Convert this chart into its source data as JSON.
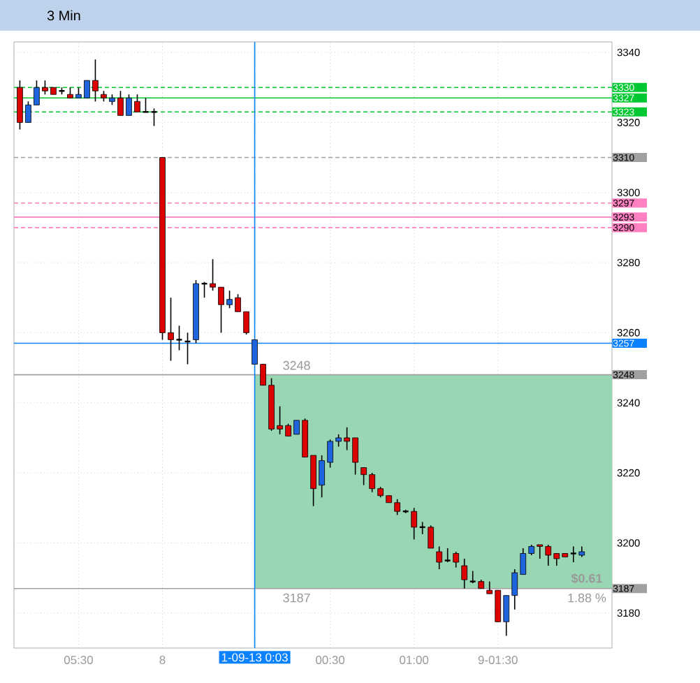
{
  "chart_data": {
    "type": "candlestick",
    "title": "3 Min",
    "categories": [
      null,
      null,
      null,
      null,
      null,
      null,
      null,
      "05:30",
      null,
      null,
      null,
      null,
      null,
      null,
      null,
      null,
      null,
      "8",
      null,
      null,
      null,
      null,
      null,
      null,
      null,
      null,
      null,
      null,
      "1-09-13 0:03",
      null,
      null,
      null,
      null,
      null,
      null,
      null,
      null,
      "00:30",
      null,
      null,
      null,
      null,
      null,
      null,
      null,
      null,
      null,
      "01:00",
      null,
      null,
      null,
      null,
      null,
      null,
      null,
      null,
      null,
      "9-01:30",
      null,
      null,
      null,
      null,
      null,
      null,
      null,
      null,
      null,
      null
    ],
    "ohlc": [
      [
        3330,
        3332,
        3318,
        3320
      ],
      [
        3320,
        3326,
        3320,
        3325
      ],
      [
        3325,
        3332,
        3325,
        3330
      ],
      [
        3330,
        3332,
        3328,
        3329
      ],
      [
        3330,
        3330,
        3328,
        3328
      ],
      [
        3329,
        3330,
        3328,
        3329
      ],
      [
        3328,
        3330,
        3327,
        3327
      ],
      [
        3327,
        3330,
        3327,
        3328
      ],
      [
        3327,
        3332,
        3327,
        3332
      ],
      [
        3332,
        3338,
        3326,
        3329
      ],
      [
        3328,
        3329,
        3326,
        3327
      ],
      [
        3326,
        3328,
        3325,
        3327
      ],
      [
        3327,
        3329,
        3322,
        3322
      ],
      [
        3322,
        3328,
        3322,
        3327
      ],
      [
        3326,
        3328,
        3323,
        3323
      ],
      [
        3323,
        3327,
        3323,
        3323
      ],
      [
        3323,
        3324,
        3319,
        3323
      ],
      [
        3310,
        3310,
        3258,
        3260
      ],
      [
        3260,
        3270,
        3252,
        3258
      ],
      [
        3258,
        3262,
        3255,
        3258
      ],
      [
        3257.5,
        3260,
        3251,
        3257.5
      ],
      [
        3258,
        3275,
        3257,
        3274
      ],
      [
        3274,
        3274.5,
        3270,
        3274
      ],
      [
        3274,
        3281,
        3272,
        3273
      ],
      [
        3273,
        3273,
        3260,
        3268
      ],
      [
        3268,
        3272,
        3267,
        3269.5
      ],
      [
        3270,
        3271,
        3266,
        3266
      ],
      [
        3266,
        3266,
        3259.5,
        3260
      ],
      [
        3251,
        3258,
        3251,
        3258
      ],
      [
        3251,
        3251,
        3245,
        3245
      ],
      [
        3245,
        3247,
        3232,
        3232.5
      ],
      [
        3233.5,
        3239,
        3231,
        3232.5
      ],
      [
        3233.5,
        3234,
        3230.5,
        3230.5
      ],
      [
        3231,
        3235,
        3231,
        3235
      ],
      [
        3235,
        3235.5,
        3224.5,
        3224.5
      ],
      [
        3225,
        3225,
        3210.5,
        3215.5
      ],
      [
        3216.5,
        3225,
        3213,
        3223.5
      ],
      [
        3223,
        3229.5,
        3221.5,
        3229
      ],
      [
        3229,
        3231,
        3227.5,
        3230
      ],
      [
        3230,
        3233,
        3226.5,
        3229
      ],
      [
        3230,
        3230,
        3219.5,
        3223
      ],
      [
        3221.5,
        3221.5,
        3216.5,
        3219.5
      ],
      [
        3219.5,
        3220,
        3214.5,
        3215.5
      ],
      [
        3215.5,
        3216,
        3213,
        3213.5
      ],
      [
        3213.5,
        3213.5,
        3211.5,
        3211.5
      ],
      [
        3211.5,
        3212.5,
        3208,
        3209
      ],
      [
        3209,
        3209.5,
        3208.5,
        3209
      ],
      [
        3209,
        3210,
        3201,
        3204.5
      ],
      [
        3204.5,
        3206,
        3202.5,
        3204.5
      ],
      [
        3204.5,
        3205,
        3198.5,
        3198.5
      ],
      [
        3197.5,
        3199,
        3192.5,
        3194.5
      ],
      [
        3195,
        3198.5,
        3194.5,
        3195
      ],
      [
        3197,
        3197.5,
        3193,
        3194.5
      ],
      [
        3193.5,
        3195.5,
        3187,
        3189.5
      ],
      [
        3189,
        3192,
        3188.5,
        3189
      ],
      [
        3189,
        3189.5,
        3187,
        3187
      ],
      [
        3186.5,
        3189,
        3185.5,
        3185.5
      ],
      [
        3186.5,
        3186.5,
        3177.5,
        3177.5
      ],
      [
        3177.5,
        3185,
        3173.5,
        3185
      ],
      [
        3185,
        3192.5,
        3181,
        3191.5
      ],
      [
        3191,
        3198.5,
        3191,
        3197
      ],
      [
        3197,
        3199.5,
        3196.5,
        3199
      ],
      [
        3199.5,
        3199.5,
        3195.5,
        3199
      ],
      [
        3199,
        3199.5,
        3193.5,
        3196.5
      ],
      [
        3197,
        3197,
        3193.5,
        3195.5
      ],
      [
        3197,
        3197,
        3196,
        3196
      ],
      [
        3197,
        3199,
        3194.5,
        3197
      ],
      [
        3196.5,
        3199,
        3196,
        3197.5
      ]
    ],
    "colors": [
      "#dc0000",
      "#1e64dc",
      "#1e64dc",
      "#dc0000",
      "#dc0000",
      "#000000",
      "#dc0000",
      "#1e64dc",
      "#1e64dc",
      "#dc0000",
      "#dc0000",
      "#1e64dc",
      "#dc0000",
      "#1e64dc",
      "#dc0000",
      "#000000",
      "#000000",
      "#dc0000",
      "#dc0000",
      "#000000",
      "#000000",
      "#1e64dc",
      "#000000",
      "#dc0000",
      "#dc0000",
      "#1e64dc",
      "#dc0000",
      "#dc0000",
      "#1e64dc",
      "#dc0000",
      "#dc0000",
      "#dc0000",
      "#dc0000",
      "#1e64dc",
      "#dc0000",
      "#dc0000",
      "#1e64dc",
      "#1e64dc",
      "#1e64dc",
      "#dc0000",
      "#dc0000",
      "#dc0000",
      "#dc0000",
      "#dc0000",
      "#dc0000",
      "#dc0000",
      "#000000",
      "#dc0000",
      "#000000",
      "#dc0000",
      "#dc0000",
      "#000000",
      "#dc0000",
      "#dc0000",
      "#000000",
      "#dc0000",
      "#dc0000",
      "#dc0000",
      "#1e64dc",
      "#1e64dc",
      "#1e64dc",
      "#1e64dc",
      "#dc0000",
      "#dc0000",
      "#dc0000",
      "#dc0000",
      "#000000",
      "#1e64dc"
    ],
    "ylim": [
      3170,
      3343
    ],
    "yticks": [
      3180,
      3200,
      3220,
      3240,
      3260,
      3280,
      3300,
      3320,
      3340
    ],
    "grid": true,
    "ref_lines": [
      {
        "axis": "y",
        "value": 3330,
        "label": "3330",
        "color": "#00c832",
        "line_style": "dashed"
      },
      {
        "axis": "y",
        "value": 3327,
        "label": "3327",
        "color": "#00c832",
        "line_style": "solid"
      },
      {
        "axis": "y",
        "value": 3323,
        "label": "3323",
        "color": "#00c832",
        "line_style": "dashed"
      },
      {
        "axis": "y",
        "value": 3310,
        "label": "3310",
        "color": "#a0a0a0",
        "line_style": "dashed"
      },
      {
        "axis": "y",
        "value": 3297,
        "label": "3297",
        "color": "#ff80c0",
        "line_style": "dashed"
      },
      {
        "axis": "y",
        "value": 3293,
        "label": "3293",
        "color": "#ff80c0",
        "line_style": "solid"
      },
      {
        "axis": "y",
        "value": 3290,
        "label": "3290",
        "color": "#ff80c0",
        "line_style": "dashed"
      },
      {
        "axis": "y",
        "value": 3257,
        "label": "3257",
        "color": "#0a82ff",
        "line_style": "solid"
      },
      {
        "axis": "y",
        "value": 3248,
        "label": "3248",
        "color": "#a0a0a0",
        "line_style": "solid"
      },
      {
        "axis": "y",
        "value": 3187,
        "label": "3187",
        "color": "#a0a0a0",
        "line_style": "solid"
      },
      {
        "axis": "x",
        "value": "1-09-13 0:03",
        "color": "#0a82ff",
        "line_style": "solid"
      }
    ],
    "bands": [
      {
        "axis": "y",
        "from": 3187,
        "to": 3248,
        "color": "#99d6b3"
      }
    ],
    "annotations": [
      "3248",
      "3187",
      "$0.61",
      "1.88 %"
    ]
  }
}
